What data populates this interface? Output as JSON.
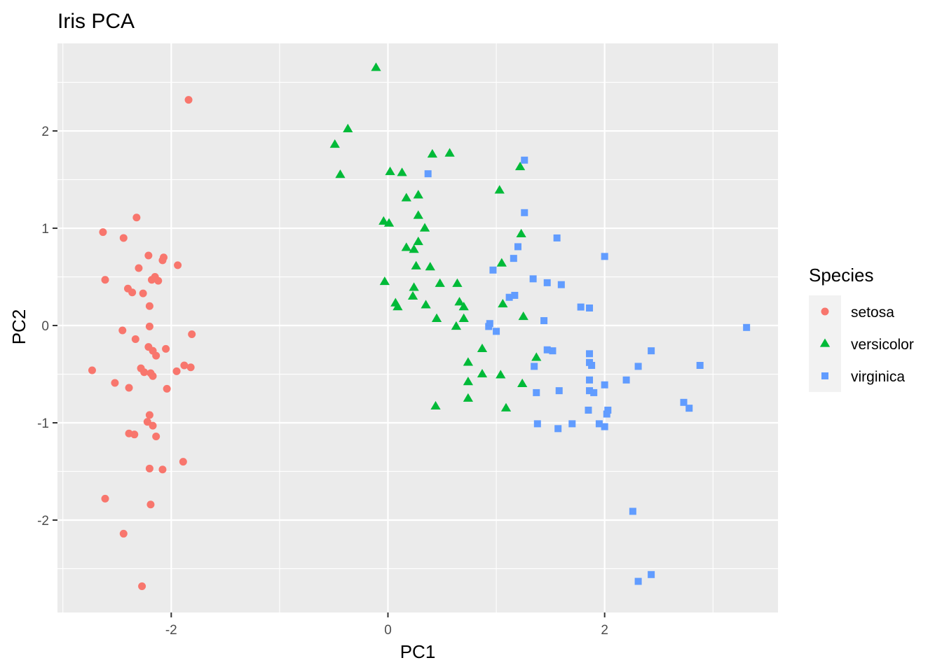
{
  "chart_data": {
    "type": "scatter",
    "title": "Iris PCA",
    "xlabel": "PC1",
    "ylabel": "PC2",
    "xlim": [
      -3.05,
      3.6
    ],
    "ylim": [
      -2.95,
      2.9
    ],
    "x_ticks": [
      -2,
      0,
      2
    ],
    "x_tick_labels": [
      "-2",
      "0",
      "2"
    ],
    "y_ticks": [
      -2,
      -1,
      0,
      1,
      2
    ],
    "y_tick_labels": [
      "-2",
      "-1",
      "0",
      "1",
      "2"
    ],
    "grid": true,
    "legend": {
      "title": "Species",
      "placement": "right"
    },
    "series": [
      {
        "name": "setosa",
        "color": "#F8766D",
        "marker": "circle",
        "points": [
          [
            -1.84,
            2.32
          ],
          [
            -2.32,
            1.11
          ],
          [
            -2.63,
            0.96
          ],
          [
            -2.44,
            0.9
          ],
          [
            -2.21,
            0.72
          ],
          [
            -2.07,
            0.7
          ],
          [
            -2.08,
            0.67
          ],
          [
            -1.94,
            0.62
          ],
          [
            -2.3,
            0.59
          ],
          [
            -2.15,
            0.5
          ],
          [
            -2.61,
            0.47
          ],
          [
            -2.18,
            0.47
          ],
          [
            -2.12,
            0.46
          ],
          [
            -2.4,
            0.38
          ],
          [
            -2.36,
            0.34
          ],
          [
            -2.26,
            0.33
          ],
          [
            -2.2,
            0.2
          ],
          [
            -2.2,
            -0.01
          ],
          [
            -2.45,
            -0.05
          ],
          [
            -2.33,
            -0.14
          ],
          [
            -2.21,
            -0.22
          ],
          [
            -2.17,
            -0.26
          ],
          [
            -2.14,
            -0.31
          ],
          [
            -2.05,
            -0.24
          ],
          [
            -1.81,
            -0.09
          ],
          [
            -1.88,
            -0.41
          ],
          [
            -1.82,
            -0.43
          ],
          [
            -1.95,
            -0.47
          ],
          [
            -2.28,
            -0.44
          ],
          [
            -2.25,
            -0.48
          ],
          [
            -2.19,
            -0.49
          ],
          [
            -2.17,
            -0.52
          ],
          [
            -2.73,
            -0.46
          ],
          [
            -2.52,
            -0.59
          ],
          [
            -2.39,
            -0.64
          ],
          [
            -2.04,
            -0.65
          ],
          [
            -2.2,
            -0.92
          ],
          [
            -2.22,
            -0.99
          ],
          [
            -2.17,
            -1.03
          ],
          [
            -2.39,
            -1.11
          ],
          [
            -2.34,
            -1.12
          ],
          [
            -2.14,
            -1.14
          ],
          [
            -1.89,
            -1.4
          ],
          [
            -2.2,
            -1.47
          ],
          [
            -2.08,
            -1.48
          ],
          [
            -2.61,
            -1.78
          ],
          [
            -2.19,
            -1.84
          ],
          [
            -2.44,
            -2.14
          ],
          [
            -2.27,
            -2.68
          ]
        ]
      },
      {
        "name": "versicolor",
        "color": "#00BA38",
        "marker": "triangle",
        "points": [
          [
            -0.11,
            2.65
          ],
          [
            -0.37,
            2.02
          ],
          [
            -0.49,
            1.86
          ],
          [
            -0.44,
            1.55
          ],
          [
            0.02,
            1.58
          ],
          [
            0.13,
            1.57
          ],
          [
            0.41,
            1.76
          ],
          [
            0.57,
            1.77
          ],
          [
            1.22,
            1.63
          ],
          [
            0.17,
            1.31
          ],
          [
            0.28,
            1.34
          ],
          [
            1.03,
            1.39
          ],
          [
            0.28,
            1.13
          ],
          [
            -0.04,
            1.07
          ],
          [
            0.01,
            1.05
          ],
          [
            0.34,
            1.0
          ],
          [
            1.23,
            0.94
          ],
          [
            0.28,
            0.86
          ],
          [
            0.17,
            0.8
          ],
          [
            0.24,
            0.78
          ],
          [
            1.05,
            0.64
          ],
          [
            0.26,
            0.61
          ],
          [
            0.39,
            0.6
          ],
          [
            -0.03,
            0.45
          ],
          [
            0.48,
            0.43
          ],
          [
            0.64,
            0.43
          ],
          [
            0.24,
            0.39
          ],
          [
            0.23,
            0.3
          ],
          [
            1.06,
            0.22
          ],
          [
            0.07,
            0.23
          ],
          [
            0.09,
            0.19
          ],
          [
            0.35,
            0.21
          ],
          [
            0.66,
            0.24
          ],
          [
            0.7,
            0.19
          ],
          [
            1.25,
            0.09
          ],
          [
            0.45,
            0.07
          ],
          [
            0.7,
            0.07
          ],
          [
            0.63,
            -0.01
          ],
          [
            0.87,
            -0.24
          ],
          [
            1.37,
            -0.33
          ],
          [
            0.74,
            -0.38
          ],
          [
            1.04,
            -0.51
          ],
          [
            0.87,
            -0.5
          ],
          [
            0.74,
            -0.58
          ],
          [
            1.24,
            -0.6
          ],
          [
            0.74,
            -0.75
          ],
          [
            0.44,
            -0.83
          ],
          [
            1.09,
            -0.85
          ]
        ]
      },
      {
        "name": "virginica",
        "color": "#619CFF",
        "marker": "square",
        "points": [
          [
            1.26,
            1.7
          ],
          [
            0.37,
            1.56
          ],
          [
            1.26,
            1.16
          ],
          [
            1.56,
            0.9
          ],
          [
            1.2,
            0.81
          ],
          [
            2.0,
            0.71
          ],
          [
            1.16,
            0.69
          ],
          [
            0.97,
            0.57
          ],
          [
            1.34,
            0.48
          ],
          [
            1.47,
            0.44
          ],
          [
            1.6,
            0.42
          ],
          [
            1.17,
            0.31
          ],
          [
            1.12,
            0.29
          ],
          [
            1.78,
            0.19
          ],
          [
            1.86,
            0.18
          ],
          [
            1.44,
            0.05
          ],
          [
            0.94,
            0.02
          ],
          [
            0.93,
            -0.01
          ],
          [
            1.0,
            -0.06
          ],
          [
            3.31,
            -0.02
          ],
          [
            1.47,
            -0.25
          ],
          [
            1.52,
            -0.26
          ],
          [
            2.43,
            -0.26
          ],
          [
            1.86,
            -0.29
          ],
          [
            1.86,
            -0.38
          ],
          [
            1.88,
            -0.41
          ],
          [
            1.35,
            -0.42
          ],
          [
            2.31,
            -0.42
          ],
          [
            2.88,
            -0.41
          ],
          [
            1.86,
            -0.56
          ],
          [
            2.2,
            -0.56
          ],
          [
            2.0,
            -0.61
          ],
          [
            1.86,
            -0.67
          ],
          [
            1.9,
            -0.69
          ],
          [
            1.37,
            -0.69
          ],
          [
            1.58,
            -0.67
          ],
          [
            2.73,
            -0.79
          ],
          [
            2.78,
            -0.85
          ],
          [
            1.85,
            -0.87
          ],
          [
            2.03,
            -0.87
          ],
          [
            2.02,
            -0.91
          ],
          [
            1.38,
            -1.01
          ],
          [
            1.7,
            -1.01
          ],
          [
            1.95,
            -1.01
          ],
          [
            1.57,
            -1.06
          ],
          [
            2.0,
            -1.04
          ],
          [
            2.26,
            -1.91
          ],
          [
            2.43,
            -2.56
          ],
          [
            2.31,
            -2.63
          ]
        ]
      }
    ]
  }
}
